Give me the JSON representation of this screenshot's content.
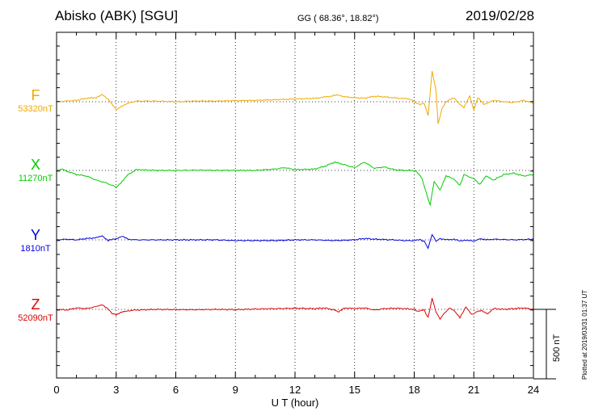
{
  "header": {
    "station": "Abisko (ABK)  [SGU]",
    "coords": "GG ( 68.36°,  18.82°)",
    "date": "2019/02/28"
  },
  "plotted_note": "Plotted at 2019/03/31 01:37 UT",
  "scale_label": "500 nT",
  "chart_data": {
    "type": "line",
    "xlabel": "U T (hour)",
    "xlim": [
      0,
      24
    ],
    "xticks": [
      "0",
      "3",
      "6",
      "9",
      "12",
      "15",
      "18",
      "21",
      "24"
    ],
    "grid": true,
    "scale_bar_nT": 500,
    "series": [
      {
        "name": "F",
        "baseline_label": "53320nT",
        "color": "#f0a800",
        "points": [
          [
            0,
            0
          ],
          [
            0.5,
            5
          ],
          [
            1,
            10
          ],
          [
            1.5,
            25
          ],
          [
            2,
            30
          ],
          [
            2.3,
            50
          ],
          [
            2.6,
            20
          ],
          [
            3,
            -60
          ],
          [
            3.2,
            -40
          ],
          [
            3.5,
            -15
          ],
          [
            4,
            5
          ],
          [
            5,
            5
          ],
          [
            6,
            0
          ],
          [
            7,
            5
          ],
          [
            8,
            5
          ],
          [
            9,
            8
          ],
          [
            10,
            10
          ],
          [
            11,
            15
          ],
          [
            12,
            20
          ],
          [
            13,
            25
          ],
          [
            13.8,
            40
          ],
          [
            14.2,
            50
          ],
          [
            14.5,
            35
          ],
          [
            15,
            30
          ],
          [
            15.5,
            25
          ],
          [
            16,
            40
          ],
          [
            16.5,
            35
          ],
          [
            17,
            28
          ],
          [
            17.8,
            20
          ],
          [
            18,
            0
          ],
          [
            18.3,
            -20
          ],
          [
            18.5,
            -10
          ],
          [
            18.7,
            -100
          ],
          [
            18.9,
            220
          ],
          [
            19.1,
            80
          ],
          [
            19.2,
            -160
          ],
          [
            19.4,
            -50
          ],
          [
            19.6,
            0
          ],
          [
            20,
            30
          ],
          [
            20.3,
            -20
          ],
          [
            20.5,
            -40
          ],
          [
            20.8,
            40
          ],
          [
            21,
            -60
          ],
          [
            21.2,
            30
          ],
          [
            21.5,
            -20
          ],
          [
            22,
            10
          ],
          [
            22.5,
            0
          ],
          [
            23,
            -5
          ],
          [
            23.5,
            10
          ],
          [
            24,
            -10
          ]
        ]
      },
      {
        "name": "X",
        "baseline_label": "11270nT",
        "color": "#00cc00",
        "points": [
          [
            0,
            -5
          ],
          [
            0.3,
            10
          ],
          [
            0.6,
            -10
          ],
          [
            1,
            -30
          ],
          [
            1.5,
            -40
          ],
          [
            2,
            -70
          ],
          [
            2.5,
            -90
          ],
          [
            3,
            -120
          ],
          [
            3.3,
            -80
          ],
          [
            3.6,
            -30
          ],
          [
            4,
            5
          ],
          [
            5,
            0
          ],
          [
            6,
            0
          ],
          [
            7,
            2
          ],
          [
            8,
            0
          ],
          [
            9,
            0
          ],
          [
            10,
            0
          ],
          [
            11,
            10
          ],
          [
            11.5,
            20
          ],
          [
            12,
            5
          ],
          [
            13,
            10
          ],
          [
            13.5,
            30
          ],
          [
            14,
            60
          ],
          [
            14.5,
            40
          ],
          [
            15,
            20
          ],
          [
            15.5,
            60
          ],
          [
            16,
            15
          ],
          [
            16.5,
            25
          ],
          [
            17,
            5
          ],
          [
            17.5,
            0
          ],
          [
            18,
            0
          ],
          [
            18.2,
            -20
          ],
          [
            18.4,
            -60
          ],
          [
            18.6,
            -160
          ],
          [
            18.8,
            -250
          ],
          [
            19,
            -80
          ],
          [
            19.3,
            -140
          ],
          [
            19.6,
            -40
          ],
          [
            20,
            -60
          ],
          [
            20.3,
            -110
          ],
          [
            20.5,
            -30
          ],
          [
            21,
            -60
          ],
          [
            21.3,
            -100
          ],
          [
            21.6,
            -40
          ],
          [
            22,
            -70
          ],
          [
            22.5,
            -30
          ],
          [
            23,
            -20
          ],
          [
            23.5,
            -40
          ],
          [
            24,
            -30
          ]
        ]
      },
      {
        "name": "Y",
        "baseline_label": "1810nT",
        "color": "#0000dd",
        "points": [
          [
            0,
            0
          ],
          [
            0.5,
            5
          ],
          [
            1,
            0
          ],
          [
            1.5,
            10
          ],
          [
            2,
            15
          ],
          [
            2.3,
            30
          ],
          [
            2.6,
            -5
          ],
          [
            3,
            10
          ],
          [
            3.3,
            25
          ],
          [
            3.6,
            5
          ],
          [
            4,
            0
          ],
          [
            5,
            0
          ],
          [
            6,
            0
          ],
          [
            7,
            0
          ],
          [
            8,
            0
          ],
          [
            9,
            -5
          ],
          [
            10,
            -5
          ],
          [
            11,
            -5
          ],
          [
            12,
            0
          ],
          [
            13,
            0
          ],
          [
            14,
            -5
          ],
          [
            15,
            0
          ],
          [
            15.5,
            10
          ],
          [
            16,
            5
          ],
          [
            17,
            0
          ],
          [
            17.5,
            -5
          ],
          [
            18,
            -5
          ],
          [
            18.3,
            0
          ],
          [
            18.5,
            -10
          ],
          [
            18.7,
            -60
          ],
          [
            18.9,
            40
          ],
          [
            19.1,
            -10
          ],
          [
            19.3,
            10
          ],
          [
            19.6,
            0
          ],
          [
            20,
            5
          ],
          [
            20.3,
            -10
          ],
          [
            20.6,
            0
          ],
          [
            21,
            -10
          ],
          [
            21.3,
            10
          ],
          [
            21.6,
            0
          ],
          [
            22,
            5
          ],
          [
            23,
            0
          ],
          [
            24,
            5
          ]
        ]
      },
      {
        "name": "Z",
        "baseline_label": "52090nT",
        "color": "#dd0000",
        "points": [
          [
            0,
            0
          ],
          [
            0.5,
            -5
          ],
          [
            1,
            10
          ],
          [
            1.5,
            5
          ],
          [
            2,
            20
          ],
          [
            2.3,
            35
          ],
          [
            2.6,
            0
          ],
          [
            2.8,
            -30
          ],
          [
            3,
            -40
          ],
          [
            3.3,
            -20
          ],
          [
            3.6,
            -10
          ],
          [
            4,
            -5
          ],
          [
            5,
            0
          ],
          [
            6,
            -2
          ],
          [
            7,
            -3
          ],
          [
            8,
            0
          ],
          [
            9,
            -2
          ],
          [
            10,
            2
          ],
          [
            11,
            5
          ],
          [
            12,
            8
          ],
          [
            13,
            5
          ],
          [
            13.5,
            10
          ],
          [
            14,
            -5
          ],
          [
            14.2,
            -20
          ],
          [
            14.5,
            10
          ],
          [
            15,
            5
          ],
          [
            15.5,
            10
          ],
          [
            16,
            -5
          ],
          [
            16.5,
            5
          ],
          [
            17,
            8
          ],
          [
            17.5,
            5
          ],
          [
            18,
            0
          ],
          [
            18.2,
            -15
          ],
          [
            18.5,
            -5
          ],
          [
            18.7,
            -60
          ],
          [
            18.9,
            80
          ],
          [
            19.1,
            -20
          ],
          [
            19.3,
            -70
          ],
          [
            19.5,
            -30
          ],
          [
            19.8,
            10
          ],
          [
            20,
            -10
          ],
          [
            20.3,
            -60
          ],
          [
            20.6,
            20
          ],
          [
            20.9,
            -40
          ],
          [
            21.1,
            -20
          ],
          [
            21.4,
            -10
          ],
          [
            21.7,
            -30
          ],
          [
            22,
            5
          ],
          [
            22.5,
            0
          ],
          [
            23,
            5
          ],
          [
            23.5,
            10
          ],
          [
            24,
            0
          ]
        ]
      }
    ]
  }
}
